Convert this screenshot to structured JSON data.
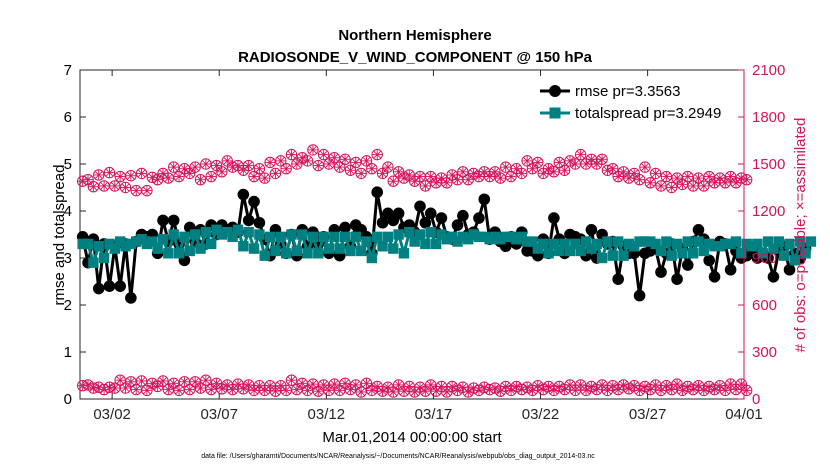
{
  "chart_data": {
    "type": "line",
    "title": "Northern Hemisphere",
    "subtitle": "RADIOSONDE_V_WIND_COMPONENT @ 150 hPa",
    "xlabel": "Mar.01,2014 00:00:00 start",
    "ylabel": "rmse and totalspread",
    "ylabel_right": "# of obs: o=possible; ×=assimilated",
    "footer": "data file: /Users/gharamti/Documents/NCAR/Reanalysis/~/Documents/NCAR/Reanalysis/webpub/obs_diag_output_2014-03.nc",
    "xlim": [
      0.5,
      31.5
    ],
    "x_ticks": [
      {
        "x": 2,
        "label": "03/02"
      },
      {
        "x": 7,
        "label": "03/07"
      },
      {
        "x": 12,
        "label": "03/12"
      },
      {
        "x": 17,
        "label": "03/17"
      },
      {
        "x": 22,
        "label": "03/22"
      },
      {
        "x": 27,
        "label": "03/27"
      },
      {
        "x": 32,
        "label": "04/01"
      }
    ],
    "y_left": {
      "lim": [
        0,
        7
      ],
      "ticks": [
        "0",
        "1",
        "2",
        "3",
        "4",
        "5",
        "6",
        "7"
      ],
      "color": "#000000"
    },
    "y_right": {
      "lim": [
        0,
        2100
      ],
      "ticks": [
        "0",
        "300",
        "600",
        "900",
        "1200",
        "1500",
        "1800",
        "2100"
      ],
      "color": "#d6135b"
    },
    "legend": {
      "location": "top-right",
      "entries": [
        "rmse pr=3.3563",
        "totalspread pr=3.2949"
      ]
    },
    "series": [
      {
        "name": "rmse pr=3.3563",
        "color": "#000000",
        "marker": "circle",
        "axis": "left",
        "values": [
          3.45,
          2.9,
          3.4,
          2.35,
          3.3,
          2.4,
          3.25,
          2.4,
          3.3,
          2.15,
          3.35,
          3.5,
          3.45,
          3.5,
          3.1,
          3.8,
          3.35,
          3.8,
          3.3,
          2.95,
          3.65,
          3.35,
          3.6,
          3.3,
          3.7,
          3.5,
          3.7,
          3.6,
          3.65,
          3.55,
          4.35,
          3.8,
          4.2,
          3.75,
          3.4,
          3.05,
          3.6,
          3.3,
          3.1,
          3.5,
          3.05,
          3.6,
          3.25,
          3.55,
          3.3,
          3.45,
          3.1,
          3.6,
          3.05,
          3.65,
          3.25,
          3.7,
          3.6,
          3.45,
          3.1,
          4.4,
          3.75,
          3.95,
          3.8,
          3.95,
          3.65,
          3.7,
          3.55,
          4.1,
          3.75,
          3.95,
          3.55,
          3.85,
          3.45,
          3.4,
          3.7,
          3.9,
          3.5,
          3.55,
          3.85,
          4.25,
          3.4,
          3.55,
          3.35,
          3.25,
          3.45,
          3.3,
          3.55,
          3.15,
          3.15,
          3.05,
          3.4,
          3.1,
          3.85,
          3.4,
          3.1,
          3.5,
          3.45,
          3.4,
          3.05,
          3.6,
          3.0,
          3.5,
          3.3,
          3.35,
          2.55,
          3.25,
          3.1,
          3.1,
          2.2,
          3.1,
          3.15,
          3.2,
          2.7,
          3.1,
          3.3,
          2.55,
          3.2,
          2.85,
          3.35,
          3.6,
          3.4,
          2.95,
          2.6,
          3.35,
          3.3,
          2.75,
          3.15,
          3.0,
          3.05,
          3.2,
          3.0,
          3.1,
          3.0,
          2.6,
          3.15,
          3.25,
          2.75,
          3.1,
          3.0,
          3.2
        ]
      },
      {
        "name": "totalspread pr=3.2949",
        "color": "#008080",
        "marker": "square",
        "axis": "left",
        "values": [
          3.3,
          3.3,
          2.9,
          3.25,
          3.0,
          3.3,
          3.2,
          3.35,
          3.25,
          3.3,
          3.35,
          3.4,
          3.3,
          3.35,
          3.2,
          3.4,
          3.1,
          3.5,
          3.1,
          3.45,
          3.15,
          3.5,
          3.2,
          3.55,
          3.3,
          3.6,
          3.5,
          3.55,
          3.45,
          3.6,
          3.25,
          3.55,
          3.2,
          3.5,
          3.05,
          3.45,
          3.15,
          3.45,
          3.1,
          3.5,
          3.15,
          3.5,
          3.1,
          3.45,
          3.1,
          3.45,
          3.2,
          3.45,
          3.2,
          3.45,
          3.15,
          3.45,
          3.15,
          3.35,
          3.0,
          3.45,
          3.25,
          3.45,
          3.2,
          3.5,
          3.1,
          3.55,
          3.35,
          3.5,
          3.3,
          3.55,
          3.3,
          3.5,
          3.4,
          3.45,
          3.35,
          3.45,
          3.4,
          3.5,
          3.45,
          3.45,
          3.4,
          3.45,
          3.4,
          3.45,
          3.45,
          3.4,
          3.45,
          3.35,
          3.35,
          3.2,
          3.3,
          3.1,
          3.3,
          3.15,
          3.3,
          3.15,
          3.3,
          3.15,
          3.35,
          3.2,
          3.3,
          3.0,
          3.35,
          3.05,
          3.35,
          3.05,
          3.3,
          3.25,
          3.35,
          3.35,
          3.35,
          3.3,
          3.15,
          3.35,
          3.05,
          3.3,
          3.1,
          3.35,
          3.1,
          3.35,
          3.15,
          3.3,
          3.25,
          3.25,
          3.3,
          3.3,
          3.35,
          3.1,
          3.3,
          3.25,
          3.3,
          3.1,
          3.35,
          3.2,
          3.35,
          3.05,
          3.3,
          2.95,
          3.35,
          3.1,
          3.35
        ]
      },
      {
        "name": "possible",
        "color": "#d6135b",
        "marker": "circle-star",
        "axis": "right",
        "values": [
          1390,
          1400,
          1355,
          1430,
          1360,
          1445,
          1360,
          1420,
          1350,
          1425,
          1330,
          1440,
          1330,
          1415,
          1400,
          1440,
          1410,
          1480,
          1420,
          1470,
          1440,
          1480,
          1400,
          1500,
          1420,
          1490,
          1450,
          1520,
          1480,
          1490,
          1460,
          1490,
          1420,
          1470,
          1410,
          1510,
          1440,
          1520,
          1470,
          1560,
          1500,
          1540,
          1520,
          1590,
          1490,
          1560,
          1500,
          1540,
          1480,
          1530,
          1460,
          1510,
          1440,
          1520,
          1470,
          1560,
          1440,
          1480,
          1390,
          1450,
          1410,
          1430,
          1390,
          1420,
          1360,
          1420,
          1380,
          1410,
          1380,
          1430,
          1400,
          1450,
          1400,
          1440,
          1420,
          1450,
          1420,
          1450,
          1410,
          1480,
          1420,
          1470,
          1440,
          1520,
          1470,
          1510,
          1440,
          1470,
          1450,
          1510,
          1460,
          1520,
          1500,
          1560,
          1500,
          1530,
          1500,
          1530,
          1460,
          1470,
          1420,
          1450,
          1410,
          1440,
          1400,
          1480,
          1380,
          1440,
          1360,
          1420,
          1350,
          1410,
          1370,
          1420,
          1360,
          1410,
          1360,
          1420,
          1380,
          1410,
          1380,
          1420,
          1380,
          1410,
          1400,
          1460,
          1400,
          1420,
          1380,
          1410,
          1380,
          1400,
          1360,
          1380,
          1380,
          1380
        ]
      },
      {
        "name": "assimilated",
        "color": "#d6135b",
        "marker": "circle-star",
        "axis": "right",
        "values": [
          85,
          90,
          70,
          75,
          60,
          75,
          70,
          120,
          70,
          110,
          60,
          115,
          55,
          100,
          80,
          115,
          60,
          100,
          55,
          110,
          60,
          110,
          70,
          120,
          60,
          100,
          65,
          90,
          60,
          95,
          65,
          90,
          55,
          85,
          55,
          85,
          50,
          85,
          55,
          120,
          60,
          100,
          55,
          95,
          50,
          90,
          55,
          95,
          55,
          100,
          60,
          90,
          45,
          100,
          55,
          80,
          50,
          75,
          45,
          90,
          50,
          80,
          45,
          75,
          50,
          90,
          50,
          80,
          45,
          80,
          55,
          75,
          45,
          70,
          55,
          75,
          60,
          70,
          50,
          80,
          55,
          80,
          60,
          75,
          55,
          85,
          60,
          80,
          55,
          80,
          60,
          90,
          55,
          90,
          55,
          80,
          60,
          90,
          55,
          85,
          60,
          90,
          65,
          85,
          55,
          80,
          60,
          90,
          55,
          85,
          60,
          95,
          55,
          80,
          60,
          85,
          55,
          80,
          60,
          85,
          55,
          95,
          60,
          95,
          55,
          80,
          55,
          85,
          55,
          75,
          60,
          80,
          55,
          80,
          55,
          30
        ]
      }
    ]
  }
}
